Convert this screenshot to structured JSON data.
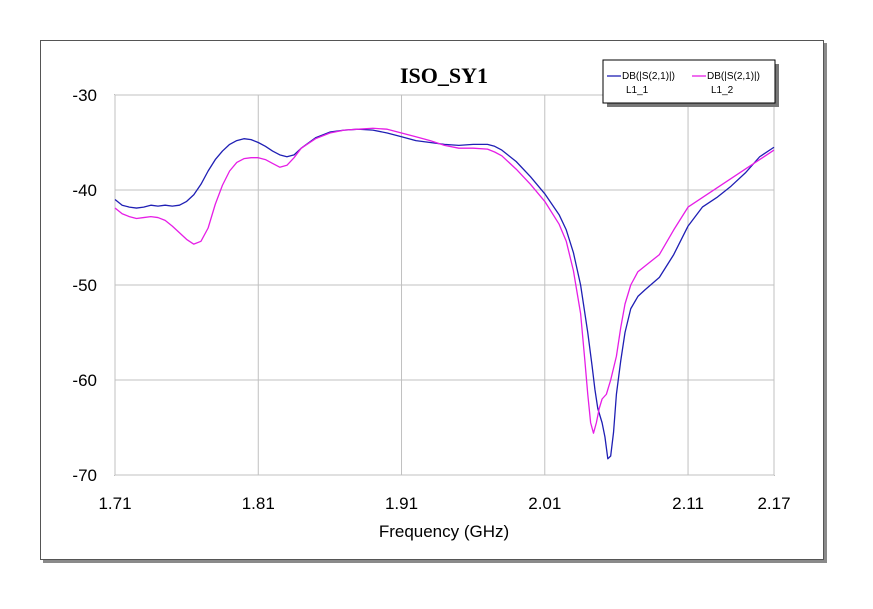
{
  "chart_data": {
    "type": "line",
    "title": "ISO_SY1",
    "xlabel": "Frequency (GHz)",
    "ylabel": "",
    "xlim": [
      1.71,
      2.17
    ],
    "ylim": [
      -70,
      -30
    ],
    "x_ticks": [
      "1.71",
      "1.81",
      "1.91",
      "2.01",
      "2.11",
      "2.17"
    ],
    "x_tick_values": [
      1.71,
      1.81,
      1.91,
      2.01,
      2.11,
      2.17
    ],
    "y_ticks": [
      "-30",
      "-40",
      "-50",
      "-60",
      "-70"
    ],
    "y_tick_values": [
      -30,
      -40,
      -50,
      -60,
      -70
    ],
    "grid": true,
    "legend_position": "top-right",
    "series": [
      {
        "name": "DB(|S(2,1)|)",
        "sub": "L1_1",
        "color": "#1f1fb4",
        "points": [
          [
            1.71,
            -41.0
          ],
          [
            1.715,
            -41.6
          ],
          [
            1.72,
            -41.8
          ],
          [
            1.725,
            -41.9
          ],
          [
            1.73,
            -41.8
          ],
          [
            1.735,
            -41.6
          ],
          [
            1.74,
            -41.7
          ],
          [
            1.745,
            -41.6
          ],
          [
            1.75,
            -41.7
          ],
          [
            1.755,
            -41.6
          ],
          [
            1.76,
            -41.2
          ],
          [
            1.765,
            -40.5
          ],
          [
            1.77,
            -39.4
          ],
          [
            1.775,
            -38.0
          ],
          [
            1.78,
            -36.8
          ],
          [
            1.785,
            -35.9
          ],
          [
            1.79,
            -35.2
          ],
          [
            1.795,
            -34.8
          ],
          [
            1.8,
            -34.6
          ],
          [
            1.805,
            -34.7
          ],
          [
            1.81,
            -35.0
          ],
          [
            1.815,
            -35.4
          ],
          [
            1.82,
            -35.9
          ],
          [
            1.825,
            -36.3
          ],
          [
            1.83,
            -36.5
          ],
          [
            1.835,
            -36.3
          ],
          [
            1.84,
            -35.6
          ],
          [
            1.85,
            -34.5
          ],
          [
            1.86,
            -33.9
          ],
          [
            1.87,
            -33.7
          ],
          [
            1.88,
            -33.6
          ],
          [
            1.89,
            -33.7
          ],
          [
            1.9,
            -34.0
          ],
          [
            1.91,
            -34.4
          ],
          [
            1.92,
            -34.8
          ],
          [
            1.93,
            -35.0
          ],
          [
            1.94,
            -35.2
          ],
          [
            1.95,
            -35.3
          ],
          [
            1.96,
            -35.2
          ],
          [
            1.97,
            -35.2
          ],
          [
            1.975,
            -35.4
          ],
          [
            1.98,
            -35.8
          ],
          [
            1.99,
            -37.0
          ],
          [
            2.0,
            -38.6
          ],
          [
            2.01,
            -40.4
          ],
          [
            2.02,
            -42.6
          ],
          [
            2.025,
            -44.2
          ],
          [
            2.03,
            -46.6
          ],
          [
            2.035,
            -50.0
          ],
          [
            2.04,
            -55.0
          ],
          [
            2.043,
            -58.5
          ],
          [
            2.045,
            -61.0
          ],
          [
            2.047,
            -63.0
          ],
          [
            2.05,
            -64.5
          ],
          [
            2.052,
            -66.0
          ],
          [
            2.054,
            -68.3
          ],
          [
            2.056,
            -68.0
          ],
          [
            2.058,
            -65.5
          ],
          [
            2.06,
            -61.5
          ],
          [
            2.063,
            -58.0
          ],
          [
            2.066,
            -55.0
          ],
          [
            2.07,
            -52.5
          ],
          [
            2.075,
            -51.2
          ],
          [
            2.08,
            -50.5
          ],
          [
            2.09,
            -49.2
          ],
          [
            2.1,
            -46.8
          ],
          [
            2.11,
            -43.8
          ],
          [
            2.12,
            -41.8
          ],
          [
            2.13,
            -40.8
          ],
          [
            2.14,
            -39.6
          ],
          [
            2.15,
            -38.2
          ],
          [
            2.16,
            -36.5
          ],
          [
            2.17,
            -35.5
          ]
        ]
      },
      {
        "name": "DB(|S(2,1)|)",
        "sub": "L1_2",
        "color": "#e61ee6",
        "points": [
          [
            1.71,
            -41.9
          ],
          [
            1.715,
            -42.5
          ],
          [
            1.72,
            -42.8
          ],
          [
            1.725,
            -43.0
          ],
          [
            1.73,
            -42.9
          ],
          [
            1.735,
            -42.8
          ],
          [
            1.74,
            -42.9
          ],
          [
            1.745,
            -43.2
          ],
          [
            1.75,
            -43.8
          ],
          [
            1.755,
            -44.5
          ],
          [
            1.76,
            -45.2
          ],
          [
            1.765,
            -45.7
          ],
          [
            1.77,
            -45.4
          ],
          [
            1.775,
            -44.0
          ],
          [
            1.78,
            -41.5
          ],
          [
            1.785,
            -39.5
          ],
          [
            1.79,
            -38.0
          ],
          [
            1.795,
            -37.1
          ],
          [
            1.8,
            -36.7
          ],
          [
            1.805,
            -36.6
          ],
          [
            1.81,
            -36.6
          ],
          [
            1.815,
            -36.8
          ],
          [
            1.82,
            -37.2
          ],
          [
            1.825,
            -37.6
          ],
          [
            1.83,
            -37.4
          ],
          [
            1.835,
            -36.6
          ],
          [
            1.84,
            -35.6
          ],
          [
            1.85,
            -34.6
          ],
          [
            1.86,
            -34.0
          ],
          [
            1.87,
            -33.7
          ],
          [
            1.88,
            -33.6
          ],
          [
            1.89,
            -33.5
          ],
          [
            1.9,
            -33.6
          ],
          [
            1.91,
            -34.0
          ],
          [
            1.92,
            -34.4
          ],
          [
            1.93,
            -34.8
          ],
          [
            1.94,
            -35.3
          ],
          [
            1.95,
            -35.6
          ],
          [
            1.96,
            -35.6
          ],
          [
            1.97,
            -35.7
          ],
          [
            1.975,
            -36.0
          ],
          [
            1.98,
            -36.4
          ],
          [
            1.99,
            -37.8
          ],
          [
            2.0,
            -39.4
          ],
          [
            2.01,
            -41.2
          ],
          [
            2.02,
            -43.6
          ],
          [
            2.025,
            -45.4
          ],
          [
            2.03,
            -48.5
          ],
          [
            2.035,
            -53.0
          ],
          [
            2.038,
            -58.0
          ],
          [
            2.04,
            -61.5
          ],
          [
            2.042,
            -64.5
          ],
          [
            2.044,
            -65.6
          ],
          [
            2.046,
            -64.5
          ],
          [
            2.048,
            -63.0
          ],
          [
            2.05,
            -62.0
          ],
          [
            2.053,
            -61.5
          ],
          [
            2.056,
            -60.0
          ],
          [
            2.06,
            -57.5
          ],
          [
            2.063,
            -54.5
          ],
          [
            2.066,
            -52.0
          ],
          [
            2.07,
            -50.0
          ],
          [
            2.075,
            -48.6
          ],
          [
            2.08,
            -48.0
          ],
          [
            2.09,
            -46.8
          ],
          [
            2.1,
            -44.2
          ],
          [
            2.11,
            -41.8
          ],
          [
            2.12,
            -40.8
          ],
          [
            2.13,
            -39.8
          ],
          [
            2.14,
            -38.8
          ],
          [
            2.15,
            -37.8
          ],
          [
            2.16,
            -36.8
          ],
          [
            2.17,
            -35.8
          ]
        ]
      }
    ]
  }
}
